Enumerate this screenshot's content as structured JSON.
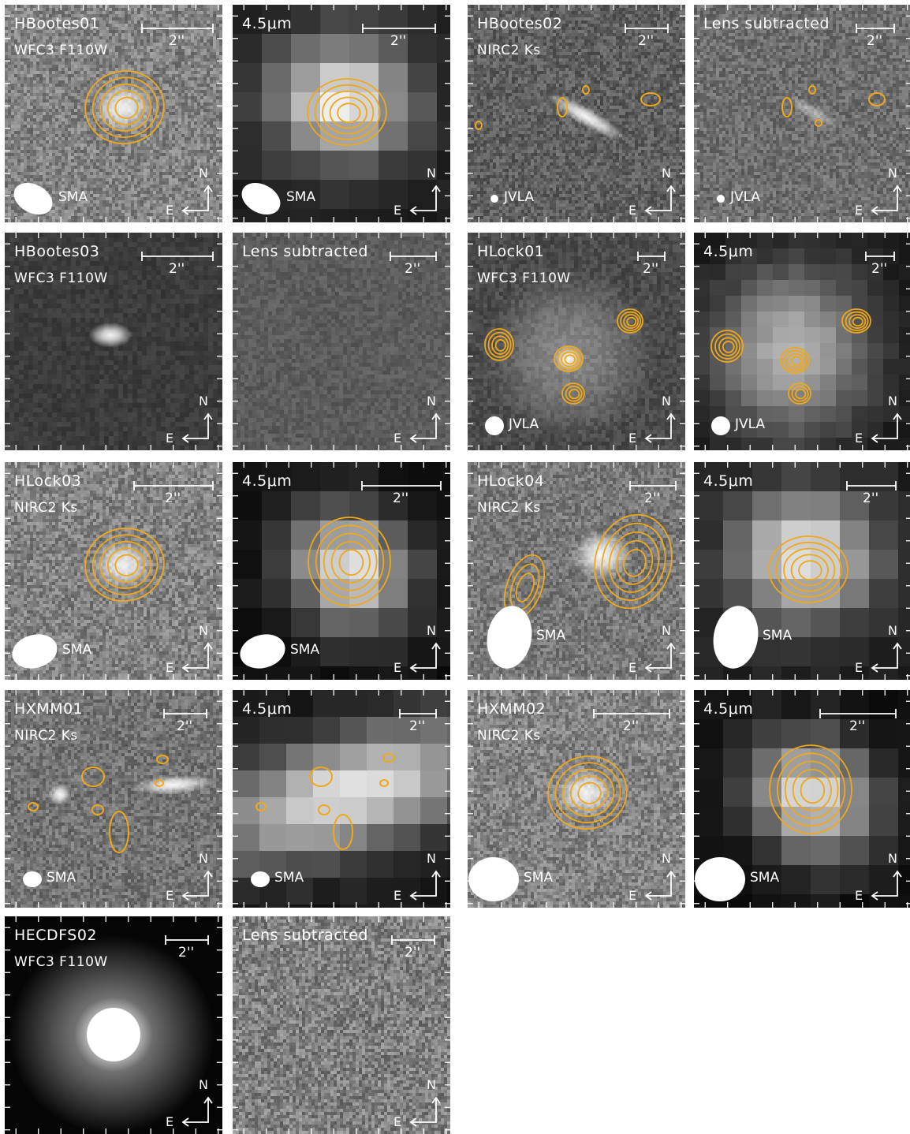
{
  "figure": {
    "panels": [
      {
        "id": "hbootes01-wfc3",
        "title": "HBootes01",
        "instrument": "WFC3 F110W",
        "scale_label": "2''",
        "beam_label": "SMA",
        "n_label": "N",
        "e_label": "E",
        "image": "noisy-galaxy",
        "contours": true
      },
      {
        "id": "hbootes01-irac",
        "title": "4.5μm",
        "instrument": "",
        "scale_label": "2''",
        "beam_label": "SMA",
        "n_label": "N",
        "e_label": "E",
        "image": "pixelated-blob",
        "contours": true
      },
      {
        "id": "hbootes02-nirc2",
        "title": "HBootes02",
        "instrument": "NIRC2 Ks",
        "scale_label": "2''",
        "beam_label": "JVLA",
        "n_label": "N",
        "e_label": "E",
        "image": "edge-on-galaxy",
        "contours": true
      },
      {
        "id": "hbootes02-sub",
        "title": "Lens subtracted",
        "instrument": "",
        "scale_label": "2''",
        "beam_label": "JVLA",
        "n_label": "N",
        "e_label": "E",
        "image": "residual",
        "contours": true
      },
      {
        "id": "hbootes03-wfc3",
        "title": "HBootes03",
        "instrument": "WFC3 F110W",
        "scale_label": "2''",
        "beam_label": "",
        "n_label": "N",
        "e_label": "E",
        "image": "smooth-small",
        "contours": false
      },
      {
        "id": "hbootes03-sub",
        "title": "Lens subtracted",
        "instrument": "",
        "scale_label": "2''",
        "beam_label": "",
        "n_label": "N",
        "e_label": "E",
        "image": "smooth-residual",
        "contours": false
      },
      {
        "id": "hlock01-wfc3",
        "title": "HLock01",
        "instrument": "WFC3 F110W",
        "scale_label": "2''",
        "beam_label": "JVLA",
        "n_label": "N",
        "e_label": "E",
        "image": "group",
        "contours": true
      },
      {
        "id": "hlock01-irac",
        "title": "4.5μm",
        "instrument": "",
        "scale_label": "2''",
        "beam_label": "JVLA",
        "n_label": "N",
        "e_label": "E",
        "image": "pixelated-group",
        "contours": true
      },
      {
        "id": "hlock03-nirc2",
        "title": "HLock03",
        "instrument": "NIRC2 Ks",
        "scale_label": "2''",
        "beam_label": "SMA",
        "n_label": "N",
        "e_label": "E",
        "image": "noisy-galaxy",
        "contours": true
      },
      {
        "id": "hlock03-irac",
        "title": "4.5μm",
        "instrument": "",
        "scale_label": "2''",
        "beam_label": "SMA",
        "n_label": "N",
        "e_label": "E",
        "image": "diamond",
        "contours": true
      },
      {
        "id": "hlock04-nirc2",
        "title": "HLock04",
        "instrument": "NIRC2 Ks",
        "scale_label": "2''",
        "beam_label": "SMA",
        "n_label": "N",
        "e_label": "E",
        "image": "noisy-pair",
        "contours": true
      },
      {
        "id": "hlock04-irac",
        "title": "4.5μm",
        "instrument": "",
        "scale_label": "2''",
        "beam_label": "SMA",
        "n_label": "N",
        "e_label": "E",
        "image": "pixelated-blob",
        "contours": true
      },
      {
        "id": "hxmm01-nirc2",
        "title": "HXMM01",
        "instrument": "NIRC2 Ks",
        "scale_label": "2''",
        "beam_label": "SMA",
        "n_label": "N",
        "e_label": "E",
        "image": "noisy-field",
        "contours": true
      },
      {
        "id": "hxmm01-irac",
        "title": "4.5μm",
        "instrument": "",
        "scale_label": "2''",
        "beam_label": "SMA",
        "n_label": "N",
        "e_label": "E",
        "image": "pixelated-elongated",
        "contours": true
      },
      {
        "id": "hxmm02-nirc2",
        "title": "HXMM02",
        "instrument": "NIRC2 Ks",
        "scale_label": "2''",
        "beam_label": "SMA",
        "n_label": "N",
        "e_label": "E",
        "image": "noisy-galaxy",
        "contours": true
      },
      {
        "id": "hxmm02-irac",
        "title": "4.5μm",
        "instrument": "",
        "scale_label": "2''",
        "beam_label": "SMA",
        "n_label": "N",
        "e_label": "E",
        "image": "diamond",
        "contours": true
      },
      {
        "id": "hecdfs02-wfc3",
        "title": "HECDFS02",
        "instrument": "WFC3 F110W",
        "scale_label": "2''",
        "beam_label": "",
        "n_label": "N",
        "e_label": "E",
        "image": "bright-elliptical",
        "contours": false
      },
      {
        "id": "hecdfs02-sub",
        "title": "Lens subtracted",
        "instrument": "",
        "scale_label": "2''",
        "beam_label": "",
        "n_label": "N",
        "e_label": "E",
        "image": "noisy-residual",
        "contours": false
      }
    ],
    "colors": {
      "contour": "#f0a818",
      "text": "#ffffff",
      "tick": "#ffffff"
    }
  }
}
